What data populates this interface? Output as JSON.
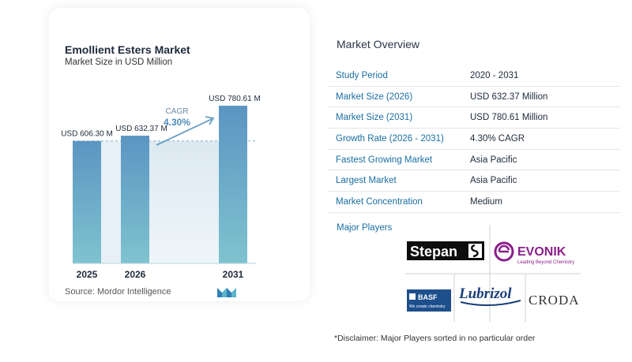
{
  "chart": {
    "title": "Emollient Esters Market",
    "subtitle": "Market Size in USD Million",
    "source": "Source:  Mordor Intelligence",
    "cagr_label": "CAGR",
    "cagr_value": "4.30%"
  },
  "chart_data": {
    "type": "bar",
    "categories": [
      "2025",
      "2026",
      "2031"
    ],
    "values": [
      606.3,
      632.37,
      780.61
    ],
    "data_labels": [
      "USD 606.30 M",
      "USD 632.37 M",
      "USD 780.61 M"
    ],
    "title": "Emollient Esters Market",
    "subtitle": "Market Size in USD Million",
    "xlabel": "",
    "ylabel": "",
    "ylim": [
      0,
      820
    ],
    "grid": false,
    "legend": "none",
    "colors": {
      "bar_top": "#5b95c2",
      "bar_bottom": "#7fc3cf",
      "arrow": "#6b9fc4",
      "baseline": "#bcd6e4"
    }
  },
  "overview": {
    "title": "Market Overview",
    "rows": [
      {
        "label": "Study Period",
        "value": "2020 - 2031"
      },
      {
        "label": "Market Size (2026)",
        "value": "USD 632.37 Million"
      },
      {
        "label": "Market Size (2031)",
        "value": "USD 780.61 Million"
      },
      {
        "label": "Growth Rate (2026 - 2031)",
        "value": "4.30% CAGR"
      },
      {
        "label": "Fastest Growing Market",
        "value": "Asia Pacific"
      },
      {
        "label": "Largest Market",
        "value": "Asia Pacific"
      },
      {
        "label": "Market Concentration",
        "value": "Medium"
      }
    ]
  },
  "players": {
    "label": "Major Players",
    "logos": [
      "Stepan",
      "EVONIK",
      "Leading Beyond Chemistry",
      "BASF",
      "We create chemistry",
      "Lubrizol",
      "CRODA"
    ]
  },
  "disclaimer": "*Disclaimer: Major Players sorted in no particular order"
}
